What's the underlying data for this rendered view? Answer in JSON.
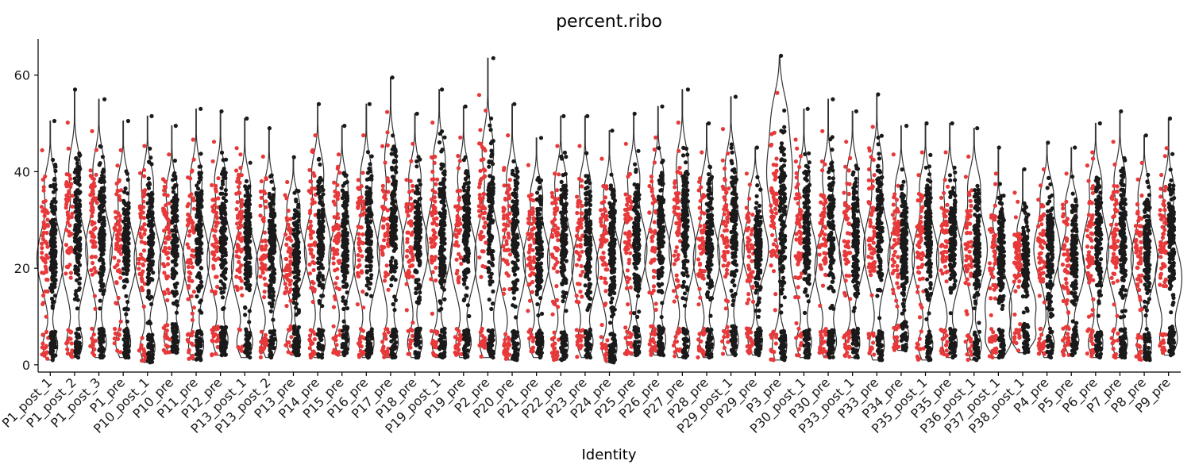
{
  "chart_data": {
    "type": "violin",
    "title": "percent.ribo",
    "xlabel": "Identity",
    "ylabel": "",
    "ylim": [
      -1.5,
      67.5
    ],
    "yticks": [
      0,
      20,
      40,
      60
    ],
    "grid": false,
    "legend": "none",
    "point_colors": [
      "#e8393a",
      "#1a1a1a"
    ],
    "violin_color": "#333333",
    "categories": [
      "P1_post_1",
      "P1_post_2",
      "P1_post_3",
      "P1_pre",
      "P10_post_1",
      "P10_pre",
      "P11_pre",
      "P12_pre",
      "P13_post_1",
      "P13_post_2",
      "P13_pre",
      "P14_pre",
      "P15_pre",
      "P16_pre",
      "P17_pre",
      "P18_pre",
      "P19_post_1",
      "P19_pre",
      "P2_pre",
      "P20_pre",
      "P21_pre",
      "P22_pre",
      "P23_pre",
      "P24_pre",
      "P25_pre",
      "P26_pre",
      "P27_pre",
      "P28_pre",
      "P29_post_1",
      "P29_pre",
      "P3_pre",
      "P30_post_1",
      "P30_pre",
      "P33_post_1",
      "P33_pre",
      "P34_pre",
      "P35_post_1",
      "P35_pre",
      "P36_post_1",
      "P37_post_1",
      "P38_post_1",
      "P4_pre",
      "P5_pre",
      "P6_pre",
      "P7_pre",
      "P8_pre",
      "P9_pre"
    ],
    "series": [
      {
        "min": 1,
        "max": 50.5,
        "median": 22
      },
      {
        "min": 1.5,
        "max": 57,
        "median": 22
      },
      {
        "min": 1.5,
        "max": 55,
        "median": 24
      },
      {
        "min": 1.5,
        "max": 50.5,
        "median": 22
      },
      {
        "min": 0.5,
        "max": 51.5,
        "median": 22
      },
      {
        "min": 2.5,
        "max": 49.5,
        "median": 20
      },
      {
        "min": 1,
        "max": 53,
        "median": 22
      },
      {
        "min": 2,
        "max": 52.5,
        "median": 22
      },
      {
        "min": 1.5,
        "max": 51,
        "median": 20
      },
      {
        "min": 1.5,
        "max": 49,
        "median": 20
      },
      {
        "min": 2,
        "max": 43,
        "median": 22
      },
      {
        "min": 1.5,
        "max": 54,
        "median": 24
      },
      {
        "min": 2,
        "max": 49.5,
        "median": 22
      },
      {
        "min": 1.5,
        "max": 54,
        "median": 22
      },
      {
        "min": 1.5,
        "max": 59.5,
        "median": 24
      },
      {
        "min": 1.5,
        "max": 52,
        "median": 24
      },
      {
        "min": 1.5,
        "max": 57,
        "median": 26
      },
      {
        "min": 1.5,
        "max": 53.5,
        "median": 22
      },
      {
        "min": 1.5,
        "max": 63.5,
        "median": 22
      },
      {
        "min": 1,
        "max": 54,
        "median": 20
      },
      {
        "min": 1.5,
        "max": 47,
        "median": 22
      },
      {
        "min": 1,
        "max": 51.5,
        "median": 22
      },
      {
        "min": 1.5,
        "max": 51.5,
        "median": 20
      },
      {
        "min": 0.5,
        "max": 48.5,
        "median": 20
      },
      {
        "min": 2,
        "max": 52,
        "median": 24
      },
      {
        "min": 2,
        "max": 53.5,
        "median": 22
      },
      {
        "min": 1.5,
        "max": 57,
        "median": 24
      },
      {
        "min": 1.5,
        "max": 50,
        "median": 22
      },
      {
        "min": 2,
        "max": 55.5,
        "median": 24
      },
      {
        "min": 2,
        "max": 45,
        "median": 24
      },
      {
        "min": 1,
        "max": 64,
        "median": 40
      },
      {
        "min": 1.5,
        "max": 53,
        "median": 22
      },
      {
        "min": 1.5,
        "max": 55,
        "median": 20
      },
      {
        "min": 1.5,
        "max": 52.5,
        "median": 24
      },
      {
        "min": 1,
        "max": 56,
        "median": 24
      },
      {
        "min": 3,
        "max": 49.5,
        "median": 22
      },
      {
        "min": 1,
        "max": 50,
        "median": 22
      },
      {
        "min": 1.5,
        "max": 50,
        "median": 22
      },
      {
        "min": 1,
        "max": 49,
        "median": 24
      },
      {
        "min": 1.5,
        "max": 45,
        "median": 12
      },
      {
        "min": 2.5,
        "max": 40.5,
        "median": 12
      },
      {
        "min": 1.5,
        "max": 46,
        "median": 24
      },
      {
        "min": 2,
        "max": 45,
        "median": 20
      },
      {
        "min": 1.5,
        "max": 50,
        "median": 24
      },
      {
        "min": 1.5,
        "max": 52.5,
        "median": 22
      },
      {
        "min": 1,
        "max": 47.5,
        "median": 22
      },
      {
        "min": 2,
        "max": 51,
        "median": 18
      }
    ]
  }
}
